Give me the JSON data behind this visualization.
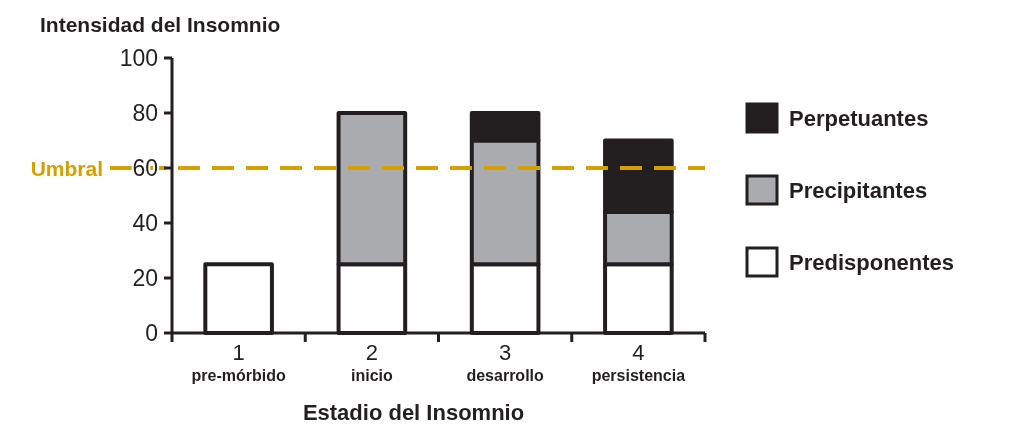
{
  "chart_data": {
    "type": "bar",
    "stacked": true,
    "ylabel": "Intensidad del Insomnio",
    "xlabel": "Estadio del Insomnio",
    "categories": [
      "1\npre-mórbido",
      "2\ninicio",
      "3\ndesarrollo",
      "4\npersistencia"
    ],
    "series": [
      {
        "name": "Predisponentes",
        "color": "#ffffff",
        "values": [
          25,
          25,
          25,
          25
        ]
      },
      {
        "name": "Precipitantes",
        "color": "#a9abae",
        "values": [
          null,
          55,
          45,
          19
        ]
      },
      {
        "name": "Perpetuantes",
        "color": "#231f20",
        "values": [
          null,
          null,
          10,
          26
        ]
      }
    ],
    "ylim": [
      0,
      100
    ],
    "yticks": [
      0,
      20,
      40,
      60,
      80,
      100
    ],
    "ref_lines": [
      {
        "axis": "y",
        "value": 60,
        "label": "Umbral",
        "color": "#d4a000",
        "line_style": "dashed"
      }
    ],
    "legend": "right",
    "grid": false
  }
}
